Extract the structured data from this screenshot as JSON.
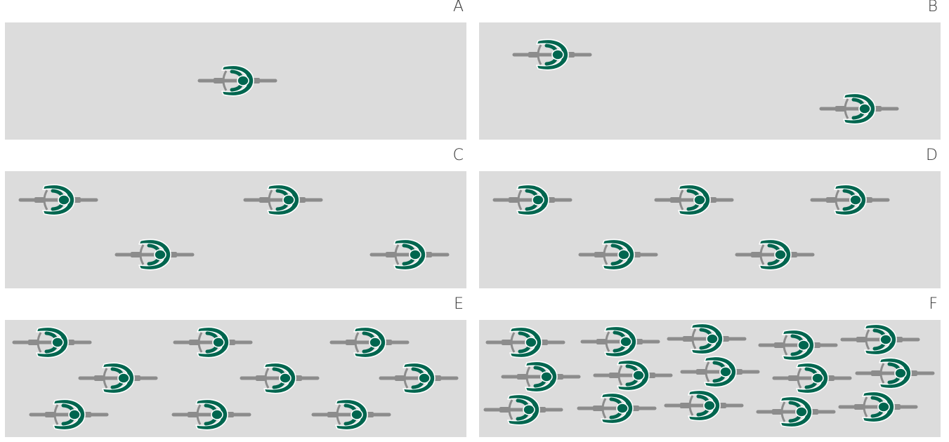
{
  "colors": {
    "background": "#dcdcdc",
    "rider": "#00664f",
    "bike": "#8c8c8c",
    "outline": "#ffffff",
    "label": "#333333"
  },
  "icon": "cyclist-topdown-icon",
  "panels": [
    {
      "label": "A",
      "riders": [
        [
          340,
          115
        ]
      ]
    },
    {
      "label": "B",
      "riders": [
        [
          788,
          78
        ],
        [
          1225,
          155
        ]
      ]
    },
    {
      "label": "C",
      "riders": [
        [
          85,
          285
        ],
        [
          405,
          285
        ],
        [
          222,
          363
        ],
        [
          585,
          363
        ]
      ]
    },
    {
      "label": "D",
      "riders": [
        [
          760,
          285
        ],
        [
          990,
          285
        ],
        [
          1212,
          285
        ],
        [
          882,
          363
        ],
        [
          1105,
          363
        ]
      ]
    },
    {
      "label": "E",
      "riders": [
        [
          76,
          488
        ],
        [
          305,
          488
        ],
        [
          528,
          488
        ],
        [
          170,
          539
        ],
        [
          400,
          539
        ],
        [
          598,
          539
        ],
        [
          100,
          591
        ],
        [
          303,
          591
        ],
        [
          502,
          591
        ]
      ]
    },
    {
      "label": "F",
      "riders": [
        [
          750,
          488
        ],
        [
          885,
          487
        ],
        [
          1008,
          483
        ],
        [
          1138,
          492
        ],
        [
          1255,
          484
        ],
        [
          772,
          537
        ],
        [
          903,
          535
        ],
        [
          1027,
          530
        ],
        [
          1158,
          539
        ],
        [
          1276,
          532
        ],
        [
          747,
          584
        ],
        [
          880,
          582
        ],
        [
          1004,
          578
        ],
        [
          1135,
          587
        ],
        [
          1252,
          580
        ]
      ]
    }
  ]
}
